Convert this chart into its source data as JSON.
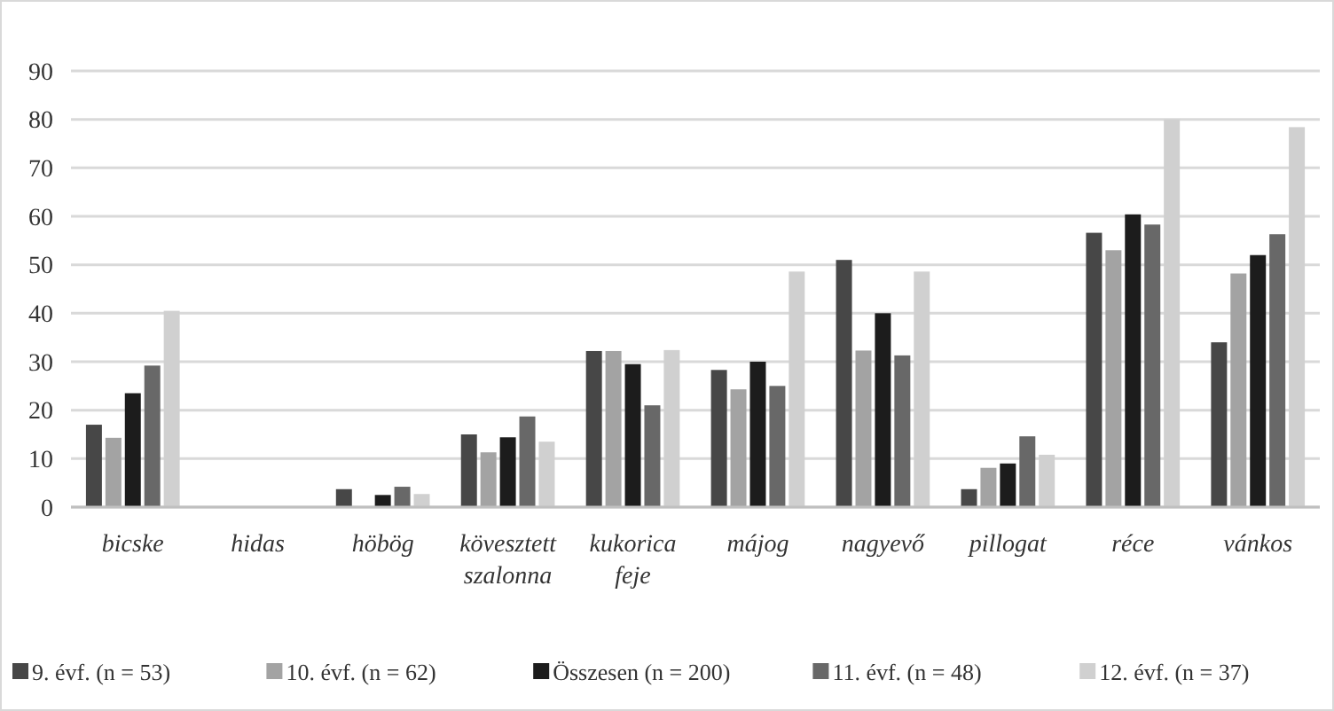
{
  "chart_data": {
    "type": "bar",
    "categories": [
      "bicske",
      "hidas",
      "höbög",
      "kövesztett szalonna",
      "kukorica feje",
      "májog",
      "nagyevő",
      "pillogat",
      "réce",
      "vánkos"
    ],
    "series": [
      {
        "name": "9. évf. (n = 53)",
        "color": "#474747",
        "values": [
          17,
          0,
          3.7,
          15,
          32.2,
          28.3,
          51,
          3.7,
          56.6,
          34
        ]
      },
      {
        "name": "10. évf. (n = 62)",
        "color": "#a3a3a3",
        "values": [
          14.3,
          0,
          0,
          11.3,
          32.2,
          24.3,
          32.3,
          8.1,
          53,
          48.2
        ]
      },
      {
        "name": "Összesen (n = 200)",
        "color": "#1c1c1c",
        "values": [
          23.5,
          0,
          2.5,
          14.4,
          29.5,
          30,
          40,
          9,
          60.4,
          52
        ]
      },
      {
        "name": "11. évf. (n = 48)",
        "color": "#686868",
        "values": [
          29.2,
          0,
          4.2,
          18.7,
          21,
          25,
          31.3,
          14.6,
          58.3,
          56.3
        ]
      },
      {
        "name": "12. évf. (n = 37)",
        "color": "#d0d0d0",
        "values": [
          40.5,
          0,
          2.7,
          13.5,
          32.4,
          48.6,
          48.6,
          10.8,
          80,
          78.4
        ]
      }
    ],
    "ylim": [
      0,
      90
    ],
    "yticks": [
      0,
      10,
      20,
      30,
      40,
      50,
      60,
      70,
      80,
      90
    ],
    "grid": "y",
    "legend": "bottom"
  }
}
